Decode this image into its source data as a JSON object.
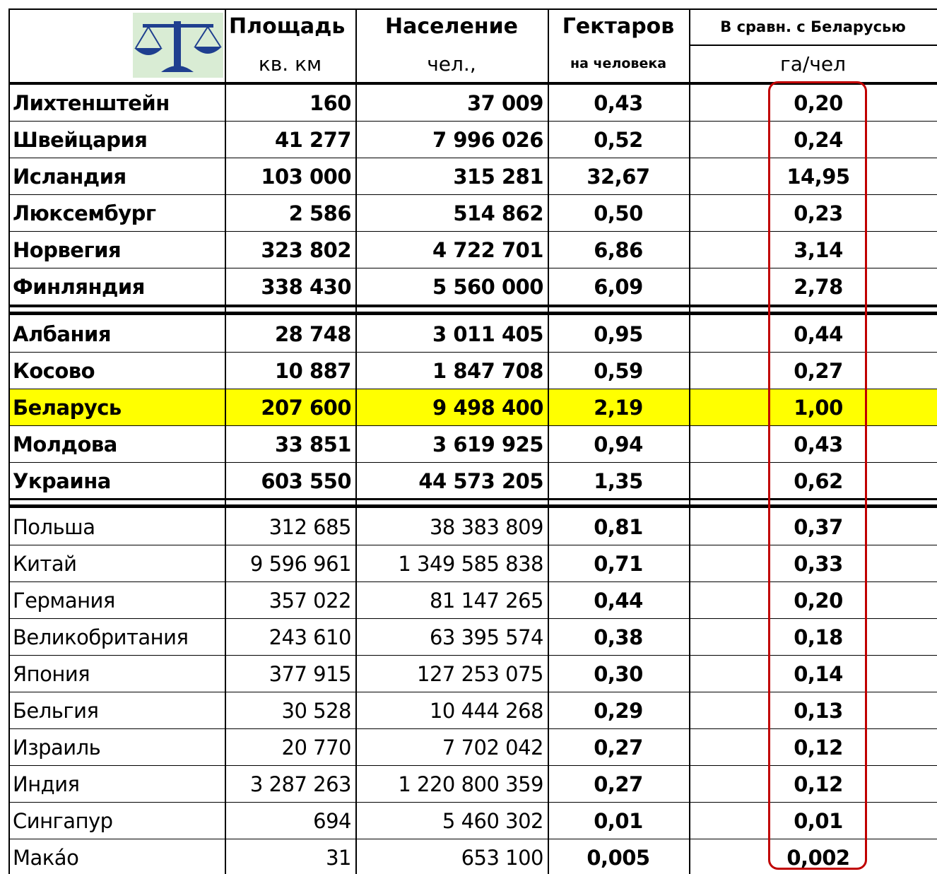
{
  "header": {
    "columns": [
      "Площадь",
      "Население",
      "Гектаров",
      "В сравн. с Беларусью"
    ],
    "units": [
      "кв. км",
      "чел.,",
      "на человека",
      "га/чел"
    ]
  },
  "groups": [
    {
      "rows": [
        [
          "Лихтенштейн",
          "160",
          "37 009",
          "0,43",
          "0,20"
        ],
        [
          "Швейцария",
          "41 277",
          "7 996 026",
          "0,52",
          "0,24"
        ],
        [
          "Исландия",
          "103 000",
          "315 281",
          "32,67",
          "14,95"
        ],
        [
          "Люксембург",
          "2 586",
          "514 862",
          "0,50",
          "0,23"
        ],
        [
          "Норвегия",
          "323 802",
          "4 722 701",
          "6,86",
          "3,14"
        ],
        [
          "Финляндия",
          "338 430",
          "5 560 000",
          "6,09",
          "2,78"
        ]
      ]
    },
    {
      "rows": [
        [
          "Албания",
          "28 748",
          "3 011 405",
          "0,95",
          "0,44"
        ],
        [
          "Косово",
          "10 887",
          "1 847 708",
          "0,59",
          "0,27"
        ],
        [
          "Беларусь",
          "207 600",
          "9 498 400",
          "2,19",
          "1,00"
        ],
        [
          "Молдова",
          "33 851",
          "3 619 925",
          "0,94",
          "0,43"
        ],
        [
          "Украина",
          "603 550",
          "44 573 205",
          "1,35",
          "0,62"
        ]
      ]
    },
    {
      "rows": [
        [
          "Польша",
          "312 685",
          "38 383 809",
          "0,81",
          "0,37"
        ],
        [
          "Китай",
          "9 596 961",
          "1 349 585 838",
          "0,71",
          "0,33"
        ],
        [
          "Германия",
          "357 022",
          "81 147 265",
          "0,44",
          "0,20"
        ],
        [
          "Великобритания",
          "243 610",
          "63 395 574",
          "0,38",
          "0,18"
        ],
        [
          "Япония",
          "377 915",
          "127 253 075",
          "0,30",
          "0,14"
        ],
        [
          "Бельгия",
          "30 528",
          "10 444 268",
          "0,29",
          "0,13"
        ],
        [
          "Израиль",
          "20 770",
          "7 702 042",
          "0,27",
          "0,12"
        ],
        [
          "Индия",
          "3 287 263",
          "1 220 800 359",
          "0,27",
          "0,12"
        ],
        [
          "Сингапур",
          "694",
          "5 460 302",
          "0,01",
          "0,01"
        ],
        [
          "Макáо",
          "31",
          "653 100",
          "0,005",
          "0,002"
        ]
      ]
    }
  ]
}
